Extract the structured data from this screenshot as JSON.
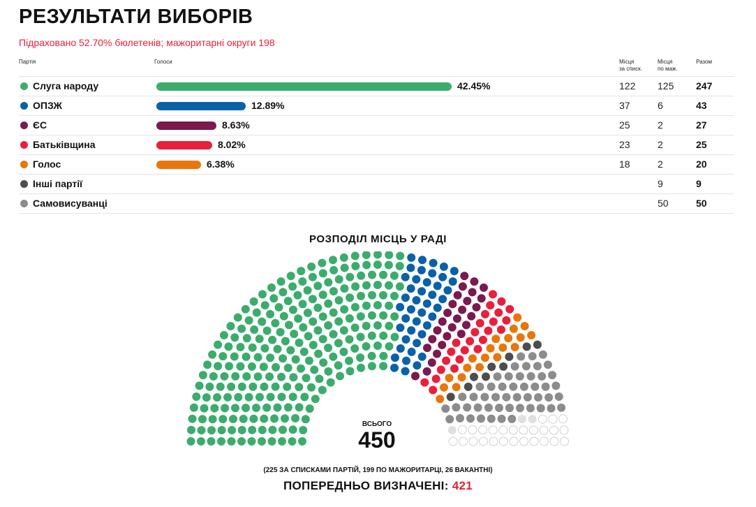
{
  "header": {
    "title": "РЕЗУЛЬТАТИ ВИБОРІВ",
    "subtitle": "Підраховано 52.70% бюлетенів; мажоритарні округи 198"
  },
  "table": {
    "headers": {
      "party": "Партія",
      "votes": "Голоси",
      "list_seats_line1": "Місця",
      "list_seats_line2": "за списк.",
      "maj_seats_line1": "Місця",
      "maj_seats_line2": "по маж.",
      "total": "Разом"
    },
    "rows": [
      {
        "party": "Слуга народу",
        "color": "#3cac6c",
        "pct_value": 42.45,
        "pct_text": "42.45%",
        "list": "122",
        "maj": "125",
        "total": "247"
      },
      {
        "party": "ОПЗЖ",
        "color": "#0a61aa",
        "pct_value": 12.89,
        "pct_text": "12.89%",
        "list": "37",
        "maj": "6",
        "total": "43"
      },
      {
        "party": "ЄС",
        "color": "#7a1a4e",
        "pct_value": 8.63,
        "pct_text": "8.63%",
        "list": "25",
        "maj": "2",
        "total": "27"
      },
      {
        "party": "Батьківщина",
        "color": "#e8203b",
        "pct_value": 8.02,
        "pct_text": "8.02%",
        "list": "23",
        "maj": "2",
        "total": "25"
      },
      {
        "party": "Голос",
        "color": "#e8760b",
        "pct_value": 6.38,
        "pct_text": "6.38%",
        "list": "18",
        "maj": "2",
        "total": "20"
      },
      {
        "party": "Інші партії",
        "color": "#4d4d4d",
        "pct_value": null,
        "pct_text": "",
        "list": "",
        "maj": "9",
        "total": "9"
      },
      {
        "party": "Самовисуванці",
        "color": "#8c8c8c",
        "pct_value": null,
        "pct_text": "",
        "list": "",
        "maj": "50",
        "total": "50"
      }
    ]
  },
  "chart_data": {
    "type": "hemicycle",
    "title": "РОЗПОДІЛ МІСЦЬ У РАДІ",
    "total_seats": 450,
    "series": [
      {
        "name": "Слуга народу",
        "seats": 247,
        "color": "#3cac6c"
      },
      {
        "name": "ОПЗЖ",
        "seats": 43,
        "color": "#0a61aa"
      },
      {
        "name": "ЄС",
        "seats": 27,
        "color": "#7a1a4e"
      },
      {
        "name": "Батьківщина",
        "seats": 25,
        "color": "#e8203b"
      },
      {
        "name": "Голос",
        "seats": 20,
        "color": "#e8760b"
      },
      {
        "name": "Інші партії",
        "seats": 9,
        "color": "#4d4d4d"
      },
      {
        "name": "Самовисуванці",
        "seats": 50,
        "color": "#8c8c8c"
      }
    ],
    "vacant": {
      "seats": 26,
      "color": "#ffffff",
      "stroke": "#cfcfcf"
    },
    "undetermined_color": "#e0e0e0"
  },
  "summary": {
    "total_label": "ВСЬОГО",
    "total_value": "450",
    "footnote": "(225 ЗА СПИСКАМИ ПАРТІЙ, 199 ПО МАЖОРИТАРЦІ, 26 ВАКАНТНІ)",
    "prelim_label": "ПОПЕРЕДНЬО ВИЗНАЧЕНІ:",
    "prelim_value": "421"
  }
}
